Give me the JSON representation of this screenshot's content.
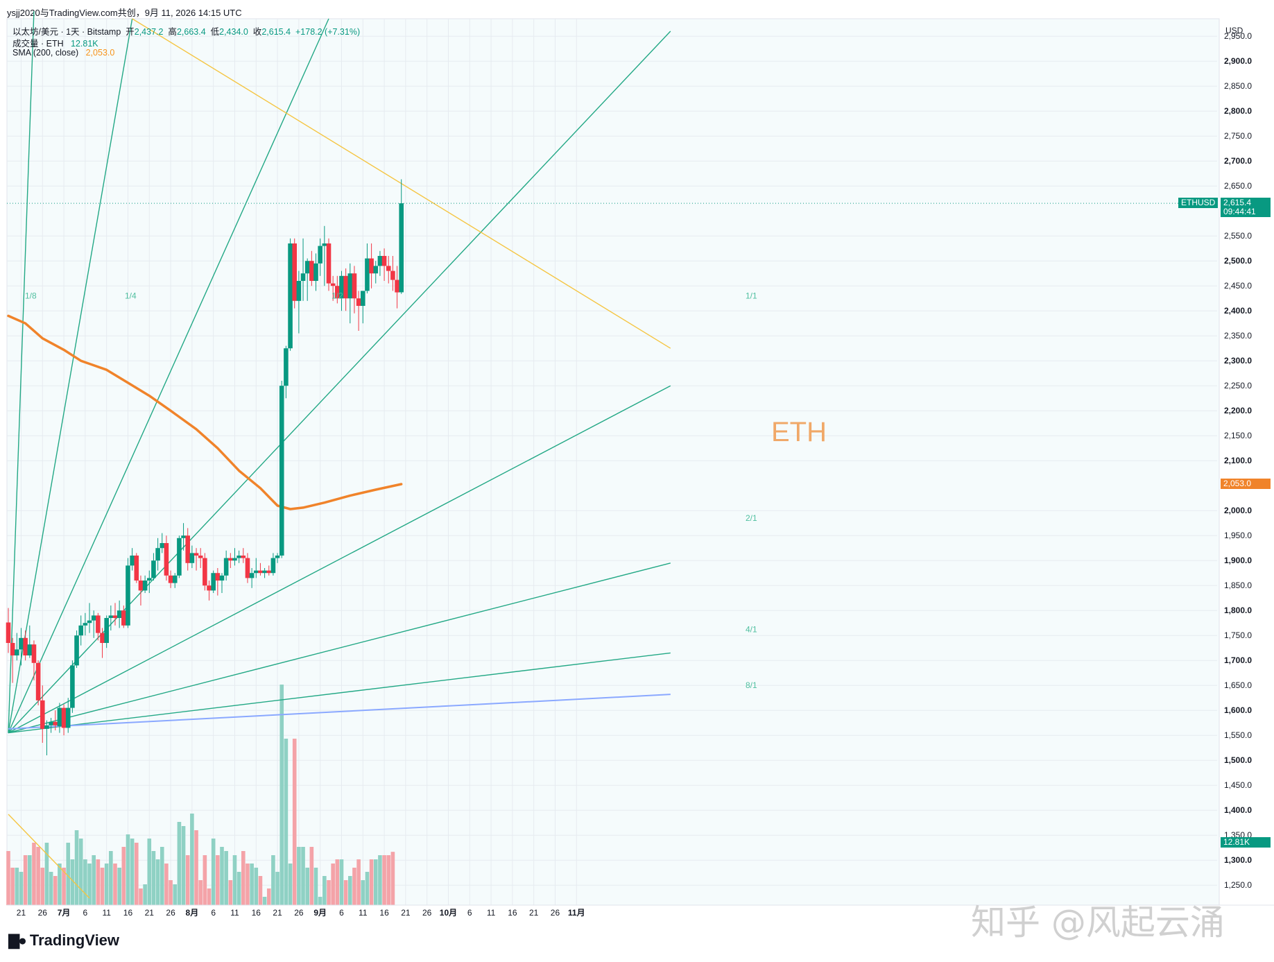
{
  "attribution": "ysjj2020与TradingView.com共创，9月 11, 2026 14:15 UTC",
  "header": {
    "line1": {
      "symbol": "以太坊/美元 · 1天 · Bitstamp",
      "open_label": "开",
      "open": "2,437.2",
      "high_label": "高",
      "high": "2,663.4",
      "low_label": "低",
      "low": "2,434.0",
      "close_label": "收",
      "close": "2,615.4",
      "change": "+178.2 (+7.31%)"
    },
    "line2": {
      "label": "成交量 · ETH",
      "value": "12.81K"
    },
    "line3": {
      "label": "SMA (200, close)",
      "value": "2,053.0"
    }
  },
  "price_axis": {
    "currency": "USD",
    "labels": [
      "2,950.0",
      "2,900.0",
      "2,850.0",
      "2,800.0",
      "2,750.0",
      "2,700.0",
      "2,650.0",
      "2,550.0",
      "2,500.0",
      "2,450.0",
      "2,400.0",
      "2,350.0",
      "2,300.0",
      "2,250.0",
      "2,200.0",
      "2,150.0",
      "2,100.0",
      "2,000.0",
      "1,950.0",
      "1,900.0",
      "1,850.0",
      "1,800.0",
      "1,750.0",
      "1,700.0",
      "1,650.0",
      "1,600.0",
      "1,550.0",
      "1,500.0",
      "1,450.0",
      "1,400.0",
      "1,350.0",
      "1,300.0",
      "1,250.0"
    ],
    "bold_labels": [
      "2,900.0",
      "2,800.0",
      "2,700.0",
      "2,500.0",
      "2,400.0",
      "2,300.0",
      "2,200.0",
      "2,100.0",
      "2,000.0",
      "1,900.0",
      "1,800.0",
      "1,700.0",
      "1,600.0",
      "1,500.0",
      "1,400.0",
      "1,300.0"
    ]
  },
  "time_axis": {
    "labels": [
      "21",
      "26",
      "7月",
      "6",
      "11",
      "16",
      "21",
      "26",
      "8月",
      "6",
      "11",
      "16",
      "21",
      "26",
      "9月",
      "6",
      "11",
      "16",
      "21",
      "26",
      "10月",
      "6",
      "11",
      "16",
      "21",
      "26",
      "11月"
    ]
  },
  "tags": {
    "symbol": "ETHUSD",
    "last_price": "2,615.4",
    "countdown": "09:44:41",
    "sma": "2,053.0",
    "volume": "12.81K"
  },
  "annotation": "ETH",
  "fan_labels": [
    "1/8",
    "1/4",
    "1/2",
    "1/1",
    "2/1",
    "4/1",
    "8/1"
  ],
  "logo_text": "TradingView",
  "watermark": "知乎 @风起云涌",
  "colors": {
    "up": "#089981",
    "down": "#f23645",
    "up_volume": "#8fd1c4",
    "down_volume": "#f4a3a8",
    "sma": "#f0832a",
    "fan": "#22a885",
    "trendline": "#f5c542",
    "blue_line": "#8aa8ff"
  },
  "chart_data": {
    "type": "candlestick",
    "title": "以太坊/美元 · 1天 · Bitstamp",
    "y_axis_unit": "USD",
    "ylim": [
      1210,
      2985
    ],
    "x_first_date": "2026-06-18",
    "x_last_date": "2026-11-20",
    "grid": true,
    "candles": [
      {
        "date": "2026-06-18",
        "o": 1776,
        "h": 1805,
        "l": 1715,
        "c": 1735
      },
      {
        "date": "2026-06-19",
        "o": 1735,
        "h": 1745,
        "l": 1655,
        "c": 1710
      },
      {
        "date": "2026-06-20",
        "o": 1710,
        "h": 1755,
        "l": 1700,
        "c": 1722
      },
      {
        "date": "2026-06-21",
        "o": 1722,
        "h": 1765,
        "l": 1690,
        "c": 1745
      },
      {
        "date": "2026-06-22",
        "o": 1745,
        "h": 1760,
        "l": 1700,
        "c": 1710
      },
      {
        "date": "2026-06-23",
        "o": 1710,
        "h": 1770,
        "l": 1705,
        "c": 1732
      },
      {
        "date": "2026-06-24",
        "o": 1732,
        "h": 1740,
        "l": 1660,
        "c": 1695
      },
      {
        "date": "2026-06-25",
        "o": 1695,
        "h": 1700,
        "l": 1610,
        "c": 1620
      },
      {
        "date": "2026-06-26",
        "o": 1620,
        "h": 1650,
        "l": 1535,
        "c": 1563
      },
      {
        "date": "2026-06-27",
        "o": 1563,
        "h": 1580,
        "l": 1510,
        "c": 1570
      },
      {
        "date": "2026-06-28",
        "o": 1570,
        "h": 1585,
        "l": 1555,
        "c": 1577
      },
      {
        "date": "2026-06-29",
        "o": 1577,
        "h": 1600,
        "l": 1560,
        "c": 1570
      },
      {
        "date": "2026-06-30",
        "o": 1568,
        "h": 1615,
        "l": 1555,
        "c": 1605
      },
      {
        "date": "2026-07-01",
        "o": 1605,
        "h": 1612,
        "l": 1550,
        "c": 1565
      },
      {
        "date": "2026-07-02",
        "o": 1565,
        "h": 1625,
        "l": 1555,
        "c": 1605
      },
      {
        "date": "2026-07-03",
        "o": 1605,
        "h": 1700,
        "l": 1595,
        "c": 1690
      },
      {
        "date": "2026-07-04",
        "o": 1690,
        "h": 1760,
        "l": 1685,
        "c": 1750
      },
      {
        "date": "2026-07-05",
        "o": 1750,
        "h": 1790,
        "l": 1730,
        "c": 1770
      },
      {
        "date": "2026-07-06",
        "o": 1770,
        "h": 1795,
        "l": 1750,
        "c": 1775
      },
      {
        "date": "2026-07-07",
        "o": 1775,
        "h": 1815,
        "l": 1755,
        "c": 1780
      },
      {
        "date": "2026-07-08",
        "o": 1780,
        "h": 1800,
        "l": 1745,
        "c": 1790
      },
      {
        "date": "2026-07-09",
        "o": 1790,
        "h": 1795,
        "l": 1740,
        "c": 1755
      },
      {
        "date": "2026-07-10",
        "o": 1755,
        "h": 1765,
        "l": 1705,
        "c": 1735
      },
      {
        "date": "2026-07-11",
        "o": 1735,
        "h": 1790,
        "l": 1725,
        "c": 1785
      },
      {
        "date": "2026-07-12",
        "o": 1785,
        "h": 1810,
        "l": 1760,
        "c": 1790
      },
      {
        "date": "2026-07-13",
        "o": 1790,
        "h": 1815,
        "l": 1770,
        "c": 1785
      },
      {
        "date": "2026-07-14",
        "o": 1785,
        "h": 1820,
        "l": 1765,
        "c": 1800
      },
      {
        "date": "2026-07-15",
        "o": 1800,
        "h": 1810,
        "l": 1765,
        "c": 1770
      },
      {
        "date": "2026-07-16",
        "o": 1770,
        "h": 1905,
        "l": 1765,
        "c": 1890
      },
      {
        "date": "2026-07-17",
        "o": 1890,
        "h": 1925,
        "l": 1880,
        "c": 1910
      },
      {
        "date": "2026-07-18",
        "o": 1910,
        "h": 1915,
        "l": 1855,
        "c": 1860
      },
      {
        "date": "2026-07-19",
        "o": 1860,
        "h": 1870,
        "l": 1810,
        "c": 1840
      },
      {
        "date": "2026-07-20",
        "o": 1840,
        "h": 1870,
        "l": 1835,
        "c": 1860
      },
      {
        "date": "2026-07-21",
        "o": 1860,
        "h": 1880,
        "l": 1835,
        "c": 1865
      },
      {
        "date": "2026-07-22",
        "o": 1865,
        "h": 1915,
        "l": 1860,
        "c": 1900
      },
      {
        "date": "2026-07-23",
        "o": 1900,
        "h": 1945,
        "l": 1880,
        "c": 1925
      },
      {
        "date": "2026-07-24",
        "o": 1925,
        "h": 1955,
        "l": 1915,
        "c": 1935
      },
      {
        "date": "2026-07-25",
        "o": 1935,
        "h": 1950,
        "l": 1860,
        "c": 1870
      },
      {
        "date": "2026-07-26",
        "o": 1870,
        "h": 1880,
        "l": 1845,
        "c": 1855
      },
      {
        "date": "2026-07-27",
        "o": 1855,
        "h": 1875,
        "l": 1845,
        "c": 1870
      },
      {
        "date": "2026-07-28",
        "o": 1870,
        "h": 1950,
        "l": 1865,
        "c": 1945
      },
      {
        "date": "2026-07-29",
        "o": 1945,
        "h": 1975,
        "l": 1920,
        "c": 1950
      },
      {
        "date": "2026-07-30",
        "o": 1950,
        "h": 1965,
        "l": 1880,
        "c": 1895
      },
      {
        "date": "2026-07-31",
        "o": 1895,
        "h": 1930,
        "l": 1885,
        "c": 1915
      },
      {
        "date": "2026-08-01",
        "o": 1915,
        "h": 1925,
        "l": 1880,
        "c": 1910
      },
      {
        "date": "2026-08-02",
        "o": 1910,
        "h": 1925,
        "l": 1885,
        "c": 1905
      },
      {
        "date": "2026-08-03",
        "o": 1905,
        "h": 1915,
        "l": 1840,
        "c": 1850
      },
      {
        "date": "2026-08-04",
        "o": 1850,
        "h": 1860,
        "l": 1820,
        "c": 1840
      },
      {
        "date": "2026-08-05",
        "o": 1840,
        "h": 1880,
        "l": 1835,
        "c": 1875
      },
      {
        "date": "2026-08-06",
        "o": 1875,
        "h": 1885,
        "l": 1830,
        "c": 1860
      },
      {
        "date": "2026-08-07",
        "o": 1860,
        "h": 1875,
        "l": 1835,
        "c": 1870
      },
      {
        "date": "2026-08-08",
        "o": 1870,
        "h": 1920,
        "l": 1860,
        "c": 1905
      },
      {
        "date": "2026-08-09",
        "o": 1905,
        "h": 1915,
        "l": 1885,
        "c": 1900
      },
      {
        "date": "2026-08-10",
        "o": 1900,
        "h": 1925,
        "l": 1890,
        "c": 1905
      },
      {
        "date": "2026-08-11",
        "o": 1905,
        "h": 1920,
        "l": 1895,
        "c": 1910
      },
      {
        "date": "2026-08-12",
        "o": 1910,
        "h": 1925,
        "l": 1895,
        "c": 1905
      },
      {
        "date": "2026-08-13",
        "o": 1905,
        "h": 1915,
        "l": 1855,
        "c": 1865
      },
      {
        "date": "2026-08-14",
        "o": 1865,
        "h": 1885,
        "l": 1845,
        "c": 1875
      },
      {
        "date": "2026-08-15",
        "o": 1875,
        "h": 1905,
        "l": 1865,
        "c": 1880
      },
      {
        "date": "2026-08-16",
        "o": 1880,
        "h": 1895,
        "l": 1870,
        "c": 1875
      },
      {
        "date": "2026-08-17",
        "o": 1875,
        "h": 1885,
        "l": 1865,
        "c": 1880
      },
      {
        "date": "2026-08-18",
        "o": 1880,
        "h": 1890,
        "l": 1870,
        "c": 1875
      },
      {
        "date": "2026-08-19",
        "o": 1875,
        "h": 1915,
        "l": 1870,
        "c": 1905
      },
      {
        "date": "2026-08-20",
        "o": 1905,
        "h": 1915,
        "l": 1895,
        "c": 1910
      },
      {
        "date": "2026-08-21",
        "o": 1910,
        "h": 2260,
        "l": 1905,
        "c": 2250
      },
      {
        "date": "2026-08-22",
        "o": 2250,
        "h": 2330,
        "l": 2225,
        "c": 2325
      },
      {
        "date": "2026-08-23",
        "o": 2325,
        "h": 2545,
        "l": 2320,
        "c": 2535
      },
      {
        "date": "2026-08-24",
        "o": 2535,
        "h": 2545,
        "l": 2405,
        "c": 2420
      },
      {
        "date": "2026-08-25",
        "o": 2420,
        "h": 2480,
        "l": 2355,
        "c": 2460
      },
      {
        "date": "2026-08-26",
        "o": 2460,
        "h": 2545,
        "l": 2420,
        "c": 2475
      },
      {
        "date": "2026-08-27",
        "o": 2475,
        "h": 2505,
        "l": 2420,
        "c": 2500
      },
      {
        "date": "2026-08-28",
        "o": 2500,
        "h": 2520,
        "l": 2450,
        "c": 2460
      },
      {
        "date": "2026-08-29",
        "o": 2460,
        "h": 2515,
        "l": 2440,
        "c": 2495
      },
      {
        "date": "2026-08-30",
        "o": 2495,
        "h": 2545,
        "l": 2470,
        "c": 2530
      },
      {
        "date": "2026-08-31",
        "o": 2530,
        "h": 2570,
        "l": 2450,
        "c": 2535
      },
      {
        "date": "2026-09-01",
        "o": 2535,
        "h": 2545,
        "l": 2440,
        "c": 2455
      },
      {
        "date": "2026-09-02",
        "o": 2455,
        "h": 2470,
        "l": 2420,
        "c": 2450
      },
      {
        "date": "2026-09-03",
        "o": 2450,
        "h": 2470,
        "l": 2415,
        "c": 2425
      },
      {
        "date": "2026-09-04",
        "o": 2425,
        "h": 2480,
        "l": 2400,
        "c": 2470
      },
      {
        "date": "2026-09-05",
        "o": 2470,
        "h": 2485,
        "l": 2400,
        "c": 2425
      },
      {
        "date": "2026-09-06",
        "o": 2425,
        "h": 2495,
        "l": 2375,
        "c": 2475
      },
      {
        "date": "2026-09-07",
        "o": 2475,
        "h": 2490,
        "l": 2395,
        "c": 2425
      },
      {
        "date": "2026-09-08",
        "o": 2425,
        "h": 2440,
        "l": 2360,
        "c": 2410
      },
      {
        "date": "2026-09-09",
        "o": 2410,
        "h": 2440,
        "l": 2375,
        "c": 2440
      },
      {
        "date": "2026-09-10",
        "o": 2440,
        "h": 2535,
        "l": 2435,
        "c": 2505
      },
      {
        "date": "2026-09-11",
        "o": 2505,
        "h": 2535,
        "l": 2445,
        "c": 2475
      },
      {
        "date": "2026-09-12",
        "o": 2475,
        "h": 2500,
        "l": 2455,
        "c": 2490
      },
      {
        "date": "2026-09-13",
        "o": 2490,
        "h": 2520,
        "l": 2470,
        "c": 2510
      },
      {
        "date": "2026-09-14",
        "o": 2510,
        "h": 2525,
        "l": 2460,
        "c": 2490
      },
      {
        "date": "2026-09-15",
        "o": 2490,
        "h": 2510,
        "l": 2455,
        "c": 2480
      },
      {
        "date": "2026-09-16",
        "o": 2480,
        "h": 2510,
        "l": 2440,
        "c": 2462
      },
      {
        "date": "2026-09-17",
        "o": 2462,
        "h": 2490,
        "l": 2405,
        "c": 2437
      },
      {
        "date": "2026-09-18",
        "o": 2437.2,
        "h": 2663.4,
        "l": 2434.0,
        "c": 2615.4
      }
    ],
    "volume_series": {
      "name": "成交量 · ETH",
      "values": [
        13,
        9,
        9,
        8,
        12,
        12,
        15,
        14,
        9,
        15,
        8,
        7,
        10,
        9,
        15,
        11,
        18,
        16,
        11,
        10,
        12,
        11,
        9,
        10,
        13,
        10,
        9,
        14,
        17,
        16,
        15,
        4,
        5,
        16,
        13,
        11,
        14,
        10,
        6,
        5,
        20,
        19,
        12,
        22,
        18,
        6,
        12,
        4,
        16,
        12,
        14,
        13,
        6,
        12,
        8,
        13,
        10,
        10,
        9,
        7,
        2,
        4,
        12,
        8,
        53,
        40,
        10,
        40,
        14,
        14,
        9,
        14,
        9,
        2,
        7,
        6,
        10,
        11,
        11,
        6,
        7,
        9,
        11,
        6,
        8,
        11,
        11,
        12,
        12,
        12,
        12.81
      ],
      "unit": "K"
    },
    "sma_200": {
      "name": "SMA (200, close)",
      "points": [
        {
          "date": "2026-06-18",
          "v": 2390
        },
        {
          "date": "2026-06-22",
          "v": 2375
        },
        {
          "date": "2026-06-26",
          "v": 2345
        },
        {
          "date": "2026-07-01",
          "v": 2322
        },
        {
          "date": "2026-07-05",
          "v": 2300
        },
        {
          "date": "2026-07-11",
          "v": 2282
        },
        {
          "date": "2026-07-16",
          "v": 2256
        },
        {
          "date": "2026-07-21",
          "v": 2230
        },
        {
          "date": "2026-07-26",
          "v": 2200
        },
        {
          "date": "2026-08-01",
          "v": 2163
        },
        {
          "date": "2026-08-06",
          "v": 2125
        },
        {
          "date": "2026-08-11",
          "v": 2080
        },
        {
          "date": "2026-08-16",
          "v": 2045
        },
        {
          "date": "2026-08-20",
          "v": 2010
        },
        {
          "date": "2026-08-23",
          "v": 2003
        },
        {
          "date": "2026-08-26",
          "v": 2006
        },
        {
          "date": "2026-08-31",
          "v": 2016
        },
        {
          "date": "2026-09-06",
          "v": 2030
        },
        {
          "date": "2026-09-12",
          "v": 2042
        },
        {
          "date": "2026-09-18",
          "v": 2053
        }
      ]
    },
    "gann_fan": {
      "origin": {
        "date": "2026-06-18",
        "price": 1555
      },
      "levels": [
        {
          "label": "1/8",
          "end": {
            "date": "2026-06-24",
            "price": 3000
          }
        },
        {
          "label": "1/4",
          "end": {
            "date": "2026-07-17",
            "price": 2985
          }
        },
        {
          "label": "1/2",
          "end": {
            "date": "2026-09-01",
            "price": 2985
          }
        },
        {
          "label": "1/1",
          "end": {
            "date": "2026-11-20",
            "price": 2960
          }
        },
        {
          "label": "2/1",
          "end": {
            "date": "2026-11-20",
            "price": 2250
          }
        },
        {
          "label": "4/1",
          "end": {
            "date": "2026-11-20",
            "price": 1895
          }
        },
        {
          "label": "8/1",
          "end": {
            "date": "2026-11-20",
            "price": 1715
          }
        }
      ]
    },
    "trendlines": [
      {
        "name": "descending",
        "from": {
          "date": "2026-07-17",
          "price": 2985
        },
        "to": {
          "date": "2026-11-20",
          "price": 2325
        }
      },
      {
        "name": "lower-left",
        "from": {
          "date": "2026-06-18",
          "price": 1392
        },
        "to": {
          "date": "2026-07-07",
          "price": 1224
        }
      },
      {
        "name": "blue-support",
        "from": {
          "date": "2026-06-18",
          "price": 1563
        },
        "to": {
          "date": "2026-11-20",
          "price": 1632
        }
      }
    ]
  }
}
